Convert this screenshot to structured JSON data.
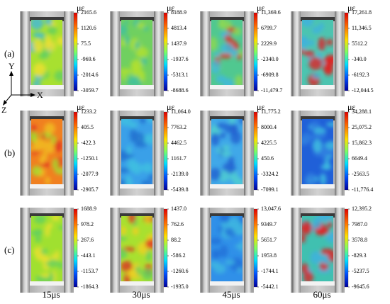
{
  "rows": [
    {
      "label": "(a)",
      "panels": [
        {
          "unit": "με",
          "ticks": [
            "2165.6",
            "1120.6",
            "75.5",
            "-969.6",
            "-2014.6",
            "-3059.7"
          ],
          "dominant": "#a8e030",
          "spots": [
            "#f0e030",
            "#60d060",
            "#3fb8e0"
          ]
        },
        {
          "unit": "με",
          "ticks": [
            "8188.9",
            "4813.4",
            "1437.9",
            "-1937.6",
            "-5313.1",
            "-8688.6"
          ],
          "dominant": "#70d060",
          "spots": [
            "#40c0a0",
            "#b0e030"
          ]
        },
        {
          "unit": "με",
          "ticks": [
            "11,369.6",
            "6799.7",
            "2229.9",
            "-2340.0",
            "-6909.8",
            "-11,479.7"
          ],
          "dominant": "#50c890",
          "spots": [
            "#40b8e0",
            "#90d850",
            "#e03020"
          ]
        },
        {
          "unit": "με",
          "ticks": [
            "17,261.8",
            "11,346.5",
            "5512.2",
            "-340.0",
            "-6192.3",
            "-12,044.5"
          ],
          "dominant": "#4cc4b0",
          "spots": [
            "#40b0e0",
            "#e02020"
          ]
        }
      ]
    },
    {
      "label": "(b)",
      "panels": [
        {
          "unit": "με",
          "ticks": [
            "1233.2",
            "405.5",
            "-422.3",
            "-1250.1",
            "-2077.9",
            "-2905.7"
          ],
          "dominant": "#f08020",
          "spots": [
            "#f0c020",
            "#e03020",
            "#a0e030"
          ]
        },
        {
          "unit": "με",
          "ticks": [
            "11,064.0",
            "7763.2",
            "4462.5",
            "1161.7",
            "-2139.0",
            "-5439.8"
          ],
          "dominant": "#3aa0e8",
          "spots": [
            "#40c0e0",
            "#2070d0"
          ]
        },
        {
          "unit": "με",
          "ticks": [
            "11,775.2",
            "8000.4",
            "4225.5",
            "450.6",
            "-3324.2",
            "-7099.1"
          ],
          "dominant": "#40a8e8",
          "spots": [
            "#50d0d0",
            "#2060d0"
          ]
        },
        {
          "unit": "με",
          "ticks": [
            "34,288.1",
            "25,075.2",
            "15,862.3",
            "6649.4",
            "-2563.5",
            "-11,776.4"
          ],
          "dominant": "#2060d8",
          "spots": [
            "#3080e0",
            "#40c0e0"
          ]
        }
      ]
    },
    {
      "label": "(c)",
      "panels": [
        {
          "unit": "",
          "ticks": [
            "1688.9",
            "978.2",
            "267.6",
            "-443.1",
            "-1153.7",
            "-1864.3"
          ],
          "dominant": "#a0e030",
          "spots": [
            "#e8e030",
            "#60d060"
          ]
        },
        {
          "unit": "",
          "ticks": [
            "1437.0",
            "762.6",
            "88.2",
            "-586.2",
            "-1260.6",
            "-1935.0"
          ],
          "dominant": "#a8e030",
          "spots": [
            "#f0d020",
            "#60d060",
            "#e03020"
          ]
        },
        {
          "unit": "",
          "ticks": [
            "13,047.6",
            "9349.7",
            "5651.7",
            "1953.8",
            "-1744.1",
            "-5442.1"
          ],
          "dominant": "#3090e8",
          "spots": [
            "#2070d8",
            "#40b8e0"
          ]
        },
        {
          "unit": "",
          "ticks": [
            "12,395.2",
            "7987.0",
            "3578.8",
            "-829.3",
            "-5237.5",
            "-9645.6"
          ],
          "dominant": "#40c0b0",
          "spots": [
            "#40b0e0",
            "#e02020"
          ]
        }
      ]
    }
  ],
  "columns": [
    "15μs",
    "30μs",
    "45μs",
    "60μs"
  ],
  "axes": {
    "y": "Y",
    "x": "X",
    "z": "Z"
  },
  "colormap": [
    "#e00000",
    "#ff8000",
    "#ffff00",
    "#80ff40",
    "#00ffff",
    "#0040ff",
    "#0000a0"
  ]
}
